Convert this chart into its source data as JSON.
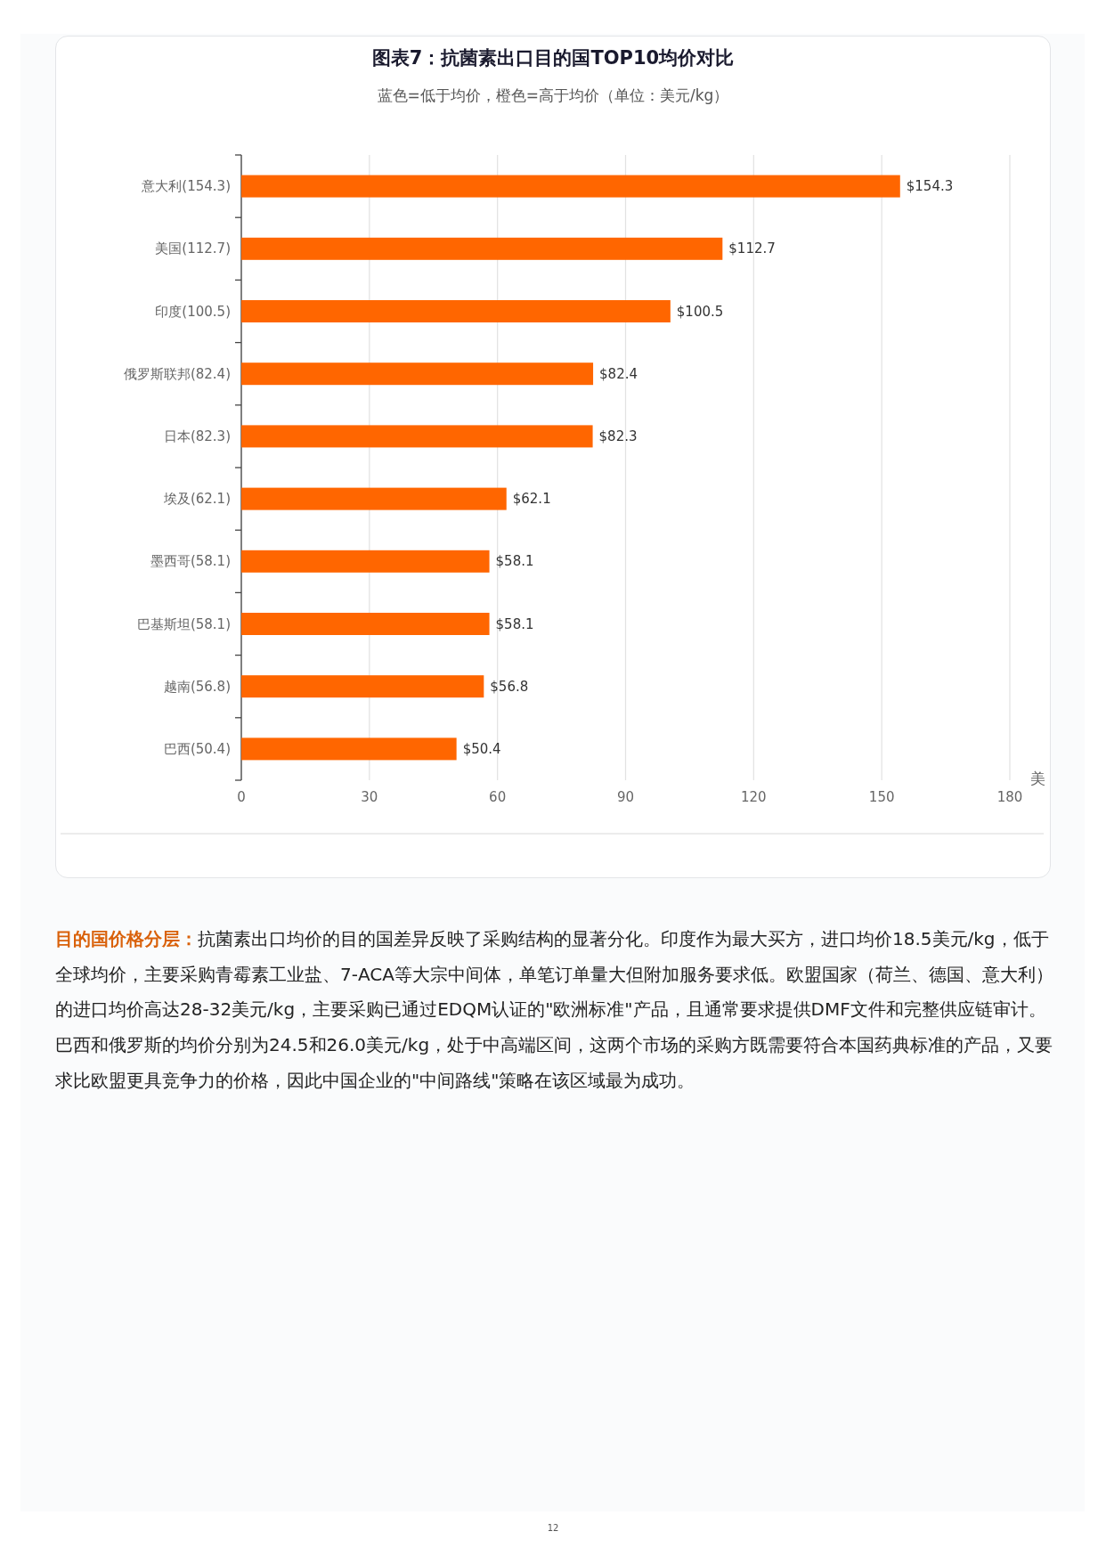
{
  "chart_data": {
    "type": "bar",
    "orientation": "horizontal",
    "title": "图表7：抗菌素出口目的国TOP10均价对比",
    "subtitle": "蓝色=低于均价，橙色=高于均价（单位：美元/kg）",
    "xlabel": "美",
    "categories": [
      "意大利(154.3)",
      "美国(112.7)",
      "印度(100.5)",
      "俄罗斯联邦(82.4)",
      "日本(82.3)",
      "埃及(62.1)",
      "墨西哥(58.1)",
      "巴基斯坦(58.1)",
      "越南(56.8)",
      "巴西(50.4)"
    ],
    "values": [
      154.3,
      112.7,
      100.5,
      82.4,
      82.3,
      62.1,
      58.1,
      58.1,
      56.8,
      50.4
    ],
    "value_labels": [
      "$154.3",
      "$112.7",
      "$100.5",
      "$82.4",
      "$82.3",
      "$62.1",
      "$58.1",
      "$58.1",
      "$56.8",
      "$50.4"
    ],
    "color": "#ff6600",
    "xlim": [
      0,
      180
    ],
    "xticks": [
      0,
      30,
      60,
      90,
      120,
      150,
      180
    ],
    "grid": "x",
    "annotations": [
      "**目的国价格分层：**抗菌素出口均价的目的国差异反映了采购结构的显著分化。印度作为最大买方，进口均价18.5美元/kg，低于全球均价，主要采购青霉素工业盐、7-ACA等大宗中间体，单笔订单量大但附加服务要求低。欧盟国家（荷兰、德国、意大利）的进口均价高达28-32美元/kg，主要采购已通过EDQM认证的\"欧洲标准\"产品，且通常要求提供DMF文件和完整供应链审计。巴西和俄罗斯的均价分别为24.5和26.0美元/kg，处于中高端区间，这两个市场的采购方既需要符合本国药典标准的产品，又要求比欧盟更具竞争力的价格，因此中国企业的\"中间路线\"策略在该区域最为成功。",
      "12"
    ]
  }
}
